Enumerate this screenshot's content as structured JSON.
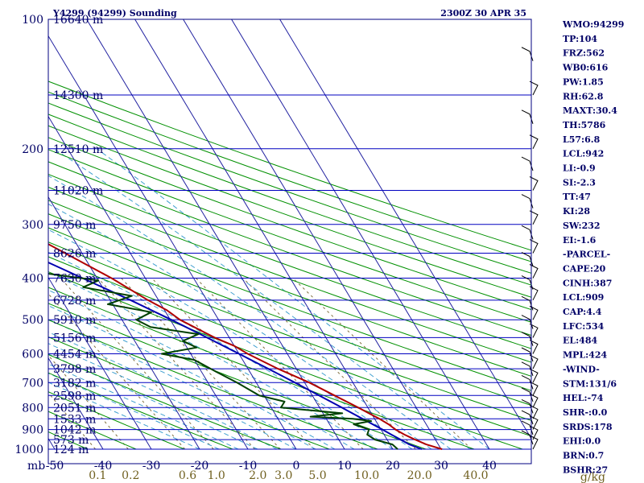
{
  "chart_data": {
    "type": "line",
    "title": "Y4299 (94299) Sounding",
    "time_label": "2300Z 30 APR 35",
    "pressure_unit_label": "mb",
    "mixing_ratio_unit_label": "g/kg",
    "pressure_ticks": [
      {
        "p": 100,
        "label": "100"
      },
      {
        "p": 200,
        "label": "200"
      },
      {
        "p": 300,
        "label": "300"
      },
      {
        "p": 400,
        "label": "400"
      },
      {
        "p": 500,
        "label": "500"
      },
      {
        "p": 600,
        "label": "600"
      },
      {
        "p": 700,
        "label": "700"
      },
      {
        "p": 800,
        "label": "800"
      },
      {
        "p": 900,
        "label": "900"
      },
      {
        "p": 1000,
        "label": "1000"
      }
    ],
    "height_levels": [
      {
        "p": 100,
        "label": "16640 m"
      },
      {
        "p": 150,
        "label": "14300 m"
      },
      {
        "p": 200,
        "label": "12510 m"
      },
      {
        "p": 250,
        "label": "11020 m"
      },
      {
        "p": 300,
        "label": "9750 m"
      },
      {
        "p": 350,
        "label": "8626 m"
      },
      {
        "p": 400,
        "label": "7630 m"
      },
      {
        "p": 450,
        "label": "6728 m"
      },
      {
        "p": 500,
        "label": "5910 m"
      },
      {
        "p": 550,
        "label": "5156 m"
      },
      {
        "p": 600,
        "label": "4454 m"
      },
      {
        "p": 650,
        "label": "3798 m"
      },
      {
        "p": 700,
        "label": "3182 m"
      },
      {
        "p": 750,
        "label": "2598 m"
      },
      {
        "p": 800,
        "label": "2051 m"
      },
      {
        "p": 850,
        "label": "1533 m"
      },
      {
        "p": 900,
        "label": "1042 m"
      },
      {
        "p": 950,
        "label": "573 m"
      },
      {
        "p": 1000,
        "label": "124 m"
      }
    ],
    "temp_ticks": [
      {
        "t": -50,
        "label": "-50"
      },
      {
        "t": -40,
        "label": "-40"
      },
      {
        "t": -30,
        "label": "-30"
      },
      {
        "t": -20,
        "label": "-20"
      },
      {
        "t": -10,
        "label": "-10"
      },
      {
        "t": 0,
        "label": "0"
      },
      {
        "t": 10,
        "label": "10"
      },
      {
        "t": 20,
        "label": "20"
      },
      {
        "t": 30,
        "label": "30"
      },
      {
        "t": 40,
        "label": "40"
      }
    ],
    "mixing_ratio_ticks": [
      {
        "w": 0.1,
        "label": "0.1"
      },
      {
        "w": 0.2,
        "label": "0.2"
      },
      {
        "w": 0.6,
        "label": "0.6"
      },
      {
        "w": 1.0,
        "label": "1.0"
      },
      {
        "w": 2.0,
        "label": "2.0"
      },
      {
        "w": 3.0,
        "label": "3.0"
      },
      {
        "w": 5.0,
        "label": "5.0"
      },
      {
        "w": 10.0,
        "label": "10.0"
      },
      {
        "w": 20.0,
        "label": "20.0"
      },
      {
        "w": 40.0,
        "label": "40.0"
      }
    ],
    "series": [
      {
        "type": "temperature",
        "values": [
          {
            "p": 1000,
            "t": 30.2
          },
          {
            "p": 975,
            "t": 27.5
          },
          {
            "p": 950,
            "t": 25.8
          },
          {
            "p": 925,
            "t": 24.2
          },
          {
            "p": 900,
            "t": 23.0
          },
          {
            "p": 875,
            "t": 22.2
          },
          {
            "p": 850,
            "t": 21.0
          },
          {
            "p": 825,
            "t": 19.5
          },
          {
            "p": 800,
            "t": 18.0
          },
          {
            "p": 750,
            "t": 14.6
          },
          {
            "p": 700,
            "t": 11.0
          },
          {
            "p": 650,
            "t": 6.2
          },
          {
            "p": 600,
            "t": 1.8
          },
          {
            "p": 575,
            "t": 0.0
          },
          {
            "p": 550,
            "t": -3.0
          },
          {
            "p": 500,
            "t": -8.0
          },
          {
            "p": 475,
            "t": -9.5
          },
          {
            "p": 450,
            "t": -12.2
          },
          {
            "p": 400,
            "t": -17.0
          },
          {
            "p": 350,
            "t": -23.5
          },
          {
            "p": 300,
            "t": -31.0
          },
          {
            "p": 250,
            "t": -40.0
          },
          {
            "p": 200,
            "t": -50.0
          },
          {
            "p": 175,
            "t": -56.5
          },
          {
            "p": 150,
            "t": -63.5
          },
          {
            "p": 130,
            "t": -70.0
          },
          {
            "p": 115,
            "t": -75.5
          },
          {
            "p": 105,
            "t": -80.5
          },
          {
            "p": 100,
            "t": -78.0
          }
        ]
      },
      {
        "type": "dewpoint",
        "values": [
          {
            "p": 1000,
            "t": 21.0
          },
          {
            "p": 975,
            "t": 20.5
          },
          {
            "p": 950,
            "t": 17.5
          },
          {
            "p": 925,
            "t": 16.5
          },
          {
            "p": 900,
            "t": 17.5
          },
          {
            "p": 875,
            "t": 15.0
          },
          {
            "p": 860,
            "t": 19.0
          },
          {
            "p": 850,
            "t": 15.5
          },
          {
            "p": 840,
            "t": 7.0
          },
          {
            "p": 825,
            "t": 14.0
          },
          {
            "p": 800,
            "t": 2.0
          },
          {
            "p": 775,
            "t": 3.5
          },
          {
            "p": 750,
            "t": -1.0
          },
          {
            "p": 700,
            "t": -4.0
          },
          {
            "p": 660,
            "t": -7.0
          },
          {
            "p": 620,
            "t": -10.0
          },
          {
            "p": 600,
            "t": -16.0
          },
          {
            "p": 580,
            "t": -8.0
          },
          {
            "p": 560,
            "t": -10.0
          },
          {
            "p": 540,
            "t": -6.0
          },
          {
            "p": 520,
            "t": -15.0
          },
          {
            "p": 500,
            "t": -17.0
          },
          {
            "p": 480,
            "t": -13.0
          },
          {
            "p": 460,
            "t": -21.0
          },
          {
            "p": 440,
            "t": -15.0
          },
          {
            "p": 420,
            "t": -24.0
          },
          {
            "p": 405,
            "t": -20.0
          },
          {
            "p": 390,
            "t": -30.0
          },
          {
            "p": 350,
            "t": -36.0
          },
          {
            "p": 300,
            "t": -45.0
          },
          {
            "p": 290,
            "t": -52.0
          },
          {
            "p": 280,
            "t": -47.0
          },
          {
            "p": 255,
            "t": -53.0
          },
          {
            "p": 240,
            "t": -60.0
          },
          {
            "p": 225,
            "t": -53.0
          },
          {
            "p": 215,
            "t": -62.0
          },
          {
            "p": 200,
            "t": -59.0
          },
          {
            "p": 190,
            "t": -65.0
          },
          {
            "p": 170,
            "t": -68.0
          },
          {
            "p": 150,
            "t": -75.0
          },
          {
            "p": 120,
            "t": -82.0
          },
          {
            "p": 100,
            "t": -81.0
          }
        ]
      },
      {
        "type": "parcel",
        "values": [
          {
            "p": 1000,
            "t": 26.0
          },
          {
            "p": 975,
            "t": 24.0
          },
          {
            "p": 950,
            "t": 22.8
          },
          {
            "p": 925,
            "t": 21.5
          },
          {
            "p": 900,
            "t": 20.3
          },
          {
            "p": 850,
            "t": 17.5
          },
          {
            "p": 800,
            "t": 14.6
          },
          {
            "p": 750,
            "t": 11.4
          },
          {
            "p": 700,
            "t": 8.0
          },
          {
            "p": 650,
            "t": 4.2
          },
          {
            "p": 600,
            "t": 0.0
          },
          {
            "p": 550,
            "t": -4.6
          },
          {
            "p": 500,
            "t": -9.8
          },
          {
            "p": 450,
            "t": -15.8
          },
          {
            "p": 400,
            "t": -23.0
          },
          {
            "p": 350,
            "t": -31.2
          },
          {
            "p": 300,
            "t": -41.0
          },
          {
            "p": 250,
            "t": -53.0
          },
          {
            "p": 200,
            "t": -68.0
          },
          {
            "p": 175,
            "t": -77.0
          },
          {
            "p": 150,
            "t": -86.0
          },
          {
            "p": 130,
            "t": -93.0
          },
          {
            "p": 115,
            "t": -99.0
          }
        ]
      }
    ],
    "indices": [
      "WMO:94299",
      "TP:104",
      "FRZ:562",
      "WB0:616",
      "PW:1.85",
      "RH:62.8",
      "MAXT:30.4",
      "TH:5786",
      "L57:6.8",
      "LCL:942",
      "LI:-0.9",
      "SI:-2.3",
      "TT:47",
      "KI:28",
      "SW:232",
      "EI:-1.6",
      "-PARCEL-",
      "CAPE:20",
      "CINH:387",
      "LCL:909",
      "CAP:4.4",
      "LFC:534",
      "EL:484",
      "MPL:424",
      "-WIND-",
      "STM:131/6",
      "HEL:-74",
      "SHR-:0.0",
      "SRDS:178",
      "EHI:0.0",
      "BRN:0.7",
      "BSHR:27"
    ],
    "colors": {
      "temperature": "#b00000",
      "dewpoint": "#004000",
      "parcel": "#0000b0",
      "isobar": "#0000c0",
      "isotherm": "#2020a0",
      "dry_adiabat": "#009000",
      "moist_adiabat": "#40a0d0",
      "mixing_ratio": "#807040",
      "frame": "#000080"
    }
  }
}
